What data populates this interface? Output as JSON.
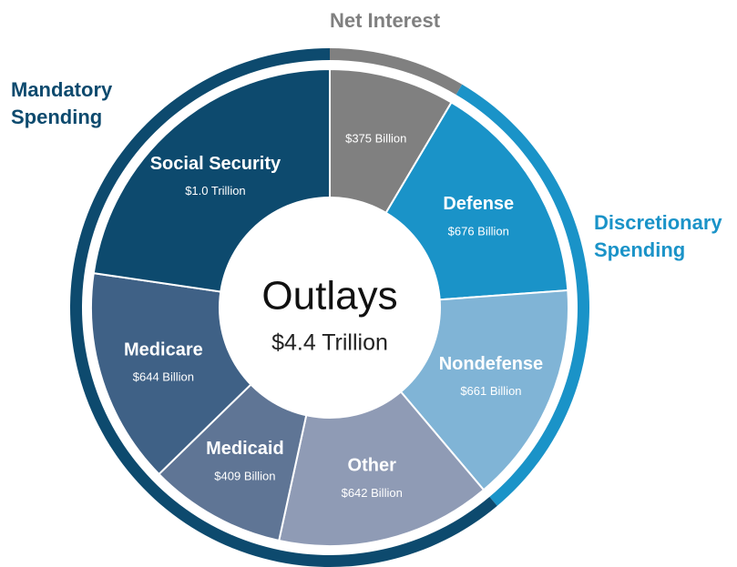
{
  "chart_data": {
    "type": "donut",
    "center_title": "Outlays",
    "center_label": "$4.4 Trillion",
    "groups": [
      {
        "name": "Net Interest",
        "color": "#808080",
        "categories": [
          null
        ],
        "values": [
          375
        ],
        "value_labels": [
          "$375 Billion"
        ],
        "colors": [
          "#808080"
        ]
      },
      {
        "name": "Discretionary Spending",
        "color": "#1a93c8",
        "categories": [
          "Defense",
          "Nondefense"
        ],
        "values": [
          676,
          661
        ],
        "value_labels": [
          "$676 Billion",
          "$661 Billion"
        ],
        "colors": [
          "#1a93c8",
          "#80b4d6"
        ]
      },
      {
        "name": "Mandatory Spending",
        "color": "#0d4a6e",
        "categories": [
          "Other",
          "Medicaid",
          "Medicare",
          "Social Security"
        ],
        "values": [
          642,
          409,
          644,
          1000
        ],
        "value_labels": [
          "$642 Billion",
          "$409 Billion",
          "$644 Billion",
          "$1.0 Trillion"
        ],
        "colors": [
          "#8f9bb5",
          "#5f7595",
          "#3f6186",
          "#0d4a6e"
        ]
      }
    ]
  }
}
